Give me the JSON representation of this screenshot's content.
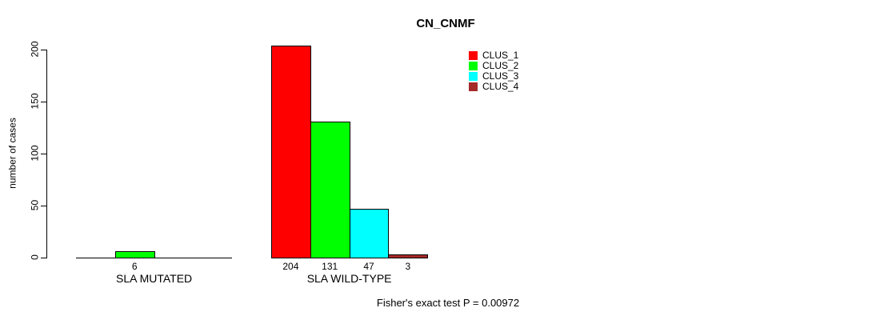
{
  "chart_data": {
    "type": "bar",
    "title": "CN_CNMF",
    "xlabel": "",
    "ylabel": "number of cases",
    "ylim": [
      0,
      200
    ],
    "yticks": [
      0,
      50,
      100,
      150,
      200
    ],
    "categories": [
      "SLA MUTATED",
      "SLA WILD-TYPE"
    ],
    "series": [
      {
        "name": "CLUS_1",
        "color": "#ff0000",
        "values": [
          0,
          204
        ]
      },
      {
        "name": "CLUS_2",
        "color": "#00ff00",
        "values": [
          6,
          131
        ]
      },
      {
        "name": "CLUS_3",
        "color": "#00ffff",
        "values": [
          0,
          47
        ]
      },
      {
        "name": "CLUS_4",
        "color": "#a52a2a",
        "values": [
          0,
          3
        ]
      }
    ],
    "bar_value_labels": [
      [
        "",
        "6",
        "",
        ""
      ],
      [
        "204",
        "131",
        "47",
        "3"
      ]
    ],
    "grid": false,
    "legend_position": "top-right",
    "annotation": "Fisher's exact test P = 0.00972"
  }
}
